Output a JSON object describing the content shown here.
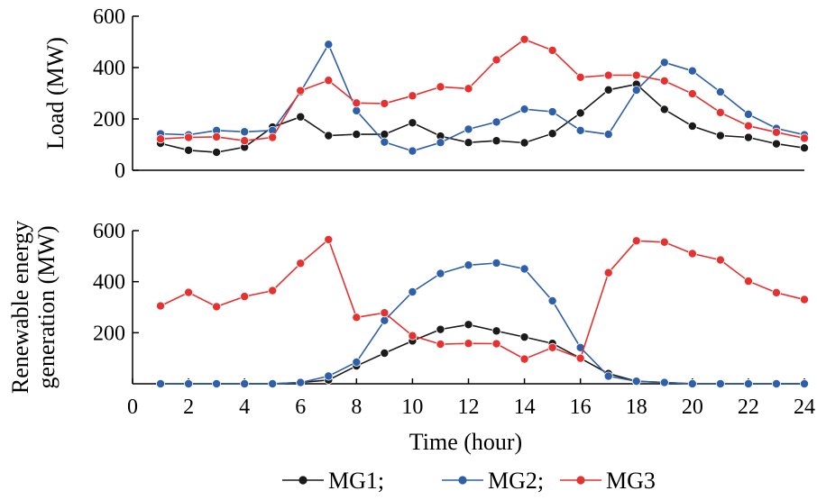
{
  "chart_data": [
    {
      "type": "line",
      "ylabel": "Load (MW)",
      "ylim": [
        0,
        600
      ],
      "yticks": [
        0,
        200,
        400,
        600
      ],
      "xlim": [
        0,
        24
      ],
      "x": [
        1,
        2,
        3,
        4,
        5,
        6,
        7,
        8,
        9,
        10,
        11,
        12,
        13,
        14,
        15,
        16,
        17,
        18,
        19,
        20,
        21,
        22,
        23,
        24
      ],
      "series": [
        {
          "name": "MG1",
          "color": "#1a1a1a",
          "values": [
            105,
            78,
            70,
            90,
            168,
            208,
            135,
            140,
            140,
            185,
            133,
            108,
            115,
            107,
            143,
            223,
            313,
            335,
            237,
            172,
            135,
            128,
            103,
            87
          ]
        },
        {
          "name": "MG2",
          "color": "#2e5fa8",
          "values": [
            142,
            138,
            155,
            150,
            155,
            305,
            490,
            232,
            110,
            75,
            108,
            160,
            188,
            238,
            228,
            155,
            140,
            312,
            420,
            387,
            305,
            218,
            163,
            138
          ]
        },
        {
          "name": "MG3",
          "color": "#e5312f",
          "values": [
            122,
            128,
            130,
            115,
            128,
            310,
            350,
            262,
            260,
            290,
            325,
            318,
            430,
            510,
            467,
            362,
            370,
            370,
            348,
            298,
            225,
            173,
            148,
            125
          ]
        }
      ],
      "grid": false
    },
    {
      "type": "line",
      "ylabel": "Renewable energy generation (MW)",
      "ylabel_lines": [
        "Renewable energy",
        "generation (MW)"
      ],
      "xlabel": "Time (hour)",
      "ylim": [
        0,
        600
      ],
      "yticks": [
        200,
        400,
        600
      ],
      "xlim": [
        0,
        24
      ],
      "xticks": [
        0,
        2,
        4,
        6,
        8,
        10,
        12,
        14,
        16,
        18,
        20,
        22,
        24
      ],
      "x": [
        1,
        2,
        3,
        4,
        5,
        6,
        7,
        8,
        9,
        10,
        11,
        12,
        13,
        14,
        15,
        16,
        17,
        18,
        19,
        20,
        21,
        22,
        23,
        24
      ],
      "series": [
        {
          "name": "MG1",
          "color": "#1a1a1a",
          "values": [
            0,
            0,
            0,
            0,
            0,
            5,
            15,
            70,
            120,
            168,
            213,
            232,
            207,
            183,
            158,
            100,
            40,
            10,
            5,
            0,
            0,
            0,
            0,
            0
          ]
        },
        {
          "name": "MG2",
          "color": "#2e5fa8",
          "values": [
            0,
            0,
            0,
            0,
            0,
            5,
            30,
            85,
            248,
            360,
            432,
            465,
            473,
            450,
            325,
            142,
            30,
            10,
            5,
            0,
            0,
            0,
            0,
            0
          ]
        },
        {
          "name": "MG3",
          "color": "#e5312f",
          "values": [
            305,
            358,
            302,
            342,
            365,
            472,
            565,
            260,
            278,
            188,
            155,
            158,
            157,
            97,
            142,
            100,
            435,
            560,
            555,
            510,
            485,
            402,
            357,
            330
          ]
        }
      ],
      "grid": false
    }
  ],
  "legend": {
    "placement": "bottom-center",
    "items": [
      "MG1;",
      "MG2;",
      "MG3"
    ]
  }
}
